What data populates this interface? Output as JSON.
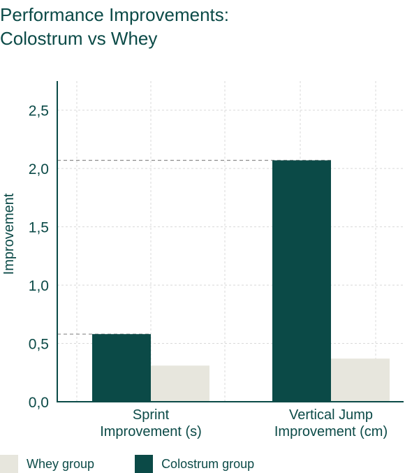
{
  "chart_data": {
    "type": "bar",
    "title_lines": [
      "Performance Improvements:",
      "Colostrum vs Whey"
    ],
    "ylabel": "Improvement",
    "xlabel": "",
    "categories": [
      [
        "Sprint",
        "Improvement (s)"
      ],
      [
        "Vertical Jump",
        "Improvement (cm)"
      ]
    ],
    "series": [
      {
        "name": "Colostrum group",
        "color": "#0b4a47",
        "values": [
          0.58,
          2.07
        ]
      },
      {
        "name": "Whey group",
        "color": "#e7e6dd",
        "values": [
          0.31,
          0.37
        ]
      }
    ],
    "ylim": [
      0,
      2.75
    ],
    "yticks": [
      0.0,
      0.5,
      1.0,
      1.5,
      2.0,
      2.5
    ],
    "ytick_labels": [
      "0,0",
      "0,5",
      "1,0",
      "1,5",
      "2,0",
      "2,5"
    ],
    "reference_lines_at": [
      0.58,
      2.07
    ],
    "grid": true,
    "legend_position": "bottom-left"
  },
  "legend": {
    "items": [
      {
        "label": "Whey group",
        "color": "#e7e6dd"
      },
      {
        "label": "Colostrum group",
        "color": "#0b4a47"
      }
    ]
  }
}
